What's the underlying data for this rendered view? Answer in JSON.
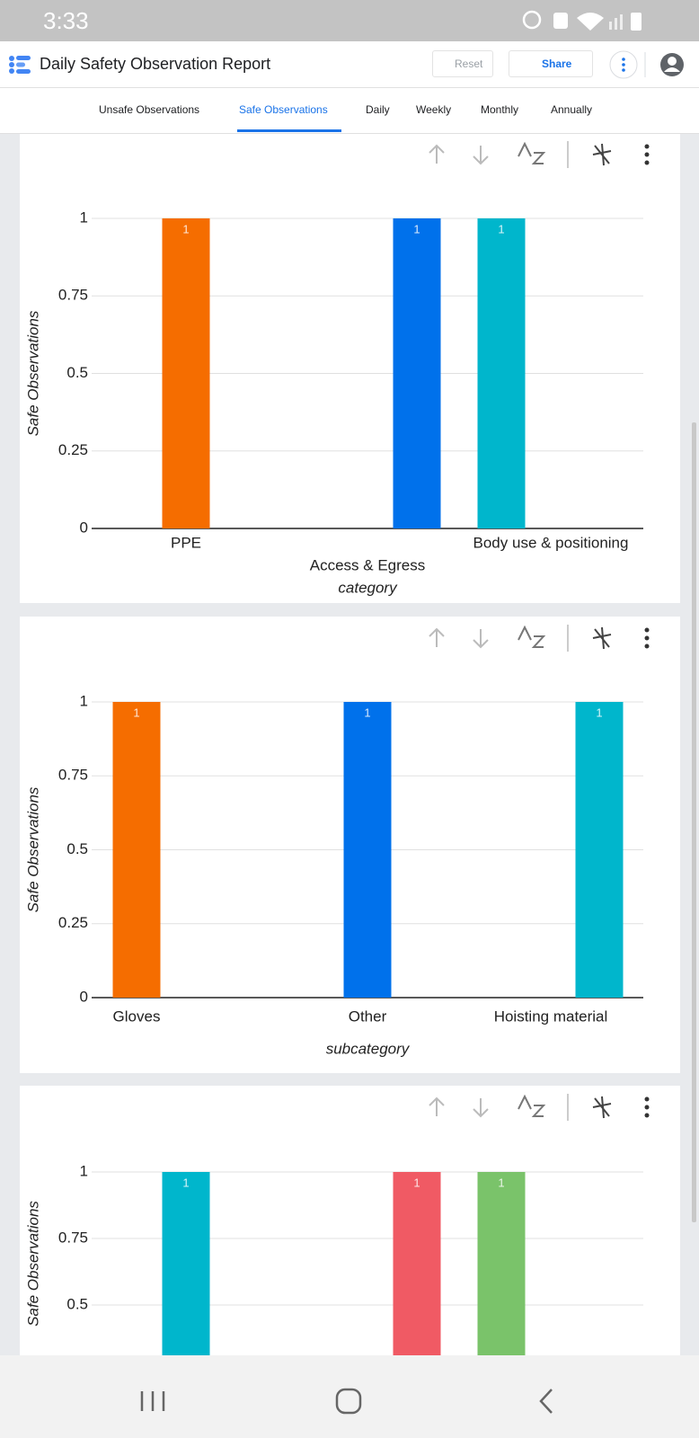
{
  "status_bar": {
    "time": "3:33"
  },
  "header": {
    "title": "Daily Safety Observation Report",
    "reset": "Reset",
    "share": "Share"
  },
  "tabs": [
    "Unsafe Observations",
    "Safe Observations",
    "Daily",
    "Weekly",
    "Monthly",
    "Annually"
  ],
  "active_tab": 1,
  "chart_data": [
    {
      "type": "bar",
      "categories": [
        "PPE",
        "Access & Egress",
        "Body use & positioning"
      ],
      "values": [
        1,
        1,
        1
      ],
      "colors": [
        "#f56d00",
        "#0071eb",
        "#00b6cc"
      ],
      "y_label": "Safe Observations",
      "x_label": "category",
      "ylim": [
        0,
        1
      ],
      "yticks": [
        0,
        0.25,
        0.5,
        0.75,
        1
      ],
      "grid": true
    },
    {
      "type": "bar",
      "categories": [
        "Gloves",
        "Other",
        "Hoisting material"
      ],
      "values": [
        1,
        1,
        1
      ],
      "colors": [
        "#f56d00",
        "#0071eb",
        "#00b6cc"
      ],
      "y_label": "Safe Observations",
      "x_label": "subcategory",
      "ylim": [
        0,
        1
      ],
      "yticks": [
        0,
        0.25,
        0.5,
        0.75,
        1
      ],
      "grid": true
    },
    {
      "type": "bar",
      "categories": [
        null,
        null,
        null
      ],
      "values": [
        1,
        1,
        1
      ],
      "colors": [
        "#00b6cc",
        "#f05a64",
        "#7ac36a"
      ],
      "y_label": "Safe Observations",
      "ylim": [
        0,
        1
      ],
      "yticks": [
        0.5,
        0.75,
        1
      ],
      "grid": true
    }
  ]
}
